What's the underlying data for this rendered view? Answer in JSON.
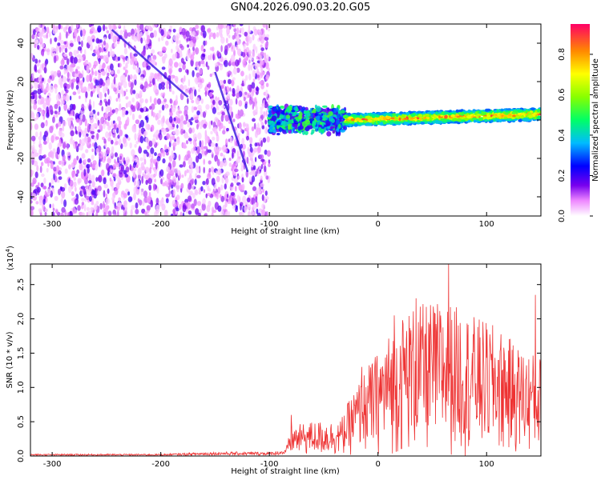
{
  "title": "GN04.2026.090.03.20.G05",
  "chart_data": [
    {
      "type": "heatmap",
      "xlabel": "Height of straight line (km)",
      "ylabel": "Frequency (Hz)",
      "xlim": [
        -320,
        150
      ],
      "ylim": [
        -50,
        50
      ],
      "xticks": [
        -300,
        -200,
        -100,
        0,
        100
      ],
      "yticks": [
        -40,
        -20,
        0,
        20,
        40
      ],
      "colorbar": {
        "label": "Normalized spectral amplitude",
        "range": [
          0,
          0.95
        ],
        "ticks": [
          0.0,
          0.2,
          0.4,
          0.6,
          0.8
        ],
        "tick_labels": [
          "0.0",
          "0.2",
          "0.4",
          "0.6",
          "0.8"
        ]
      },
      "regions": [
        {
          "x": [
            -320,
            -100
          ],
          "freq": [
            -50,
            50
          ],
          "description": "broadband noise",
          "amplitude": [
            0.03,
            0.2
          ]
        },
        {
          "x": [
            -100,
            -30
          ],
          "freq_center": 0,
          "freq_half_width": 8,
          "amplitude": [
            0.15,
            0.55
          ]
        },
        {
          "x": [
            -30,
            150
          ],
          "freq_center_start": 0,
          "freq_center_end": 3,
          "freq_half_width": 3,
          "amplitude": [
            0.3,
            0.95
          ]
        }
      ],
      "streaks": [
        {
          "x": [
            -245,
            -175
          ],
          "freq": [
            47,
            12
          ]
        },
        {
          "x": [
            -150,
            -120
          ],
          "freq": [
            25,
            -27
          ]
        }
      ]
    },
    {
      "type": "line",
      "xlabel": "Height of straight line (km)",
      "ylabel": "SNR (10 * v/v)",
      "scale_label": "(x10",
      "scale_exp": "4",
      "scale_close": ")",
      "xlim": [
        -320,
        150
      ],
      "ylim": [
        0,
        2.8
      ],
      "xticks": [
        -300,
        -200,
        -100,
        0,
        100
      ],
      "yticks": [
        0.0,
        0.5,
        1.0,
        1.5,
        2.0,
        2.5
      ],
      "ytick_labels": [
        "0.0",
        "0.5",
        "1.0",
        "1.5",
        "2.0",
        "2.5"
      ],
      "color": "#ee3333",
      "series": [
        {
          "x": [
            -320,
            -200,
            -150,
            -100,
            -85,
            -80,
            -60,
            -35,
            -25,
            -10,
            0,
            20,
            30,
            50,
            65,
            90,
            110,
            130,
            150
          ],
          "y": [
            0.02,
            0.02,
            0.04,
            0.04,
            0.06,
            0.3,
            0.35,
            0.35,
            0.6,
            0.9,
            1.05,
            1.4,
            1.5,
            1.55,
            1.55,
            1.4,
            1.3,
            1.1,
            1.0
          ],
          "peak": [
            [
              -80,
              0.6
            ],
            [
              -15,
              1.3
            ],
            [
              15,
              2.05
            ],
            [
              35,
              2.3
            ],
            [
              65,
              2.8
            ],
            [
              145,
              2.35
            ]
          ]
        }
      ]
    }
  ]
}
